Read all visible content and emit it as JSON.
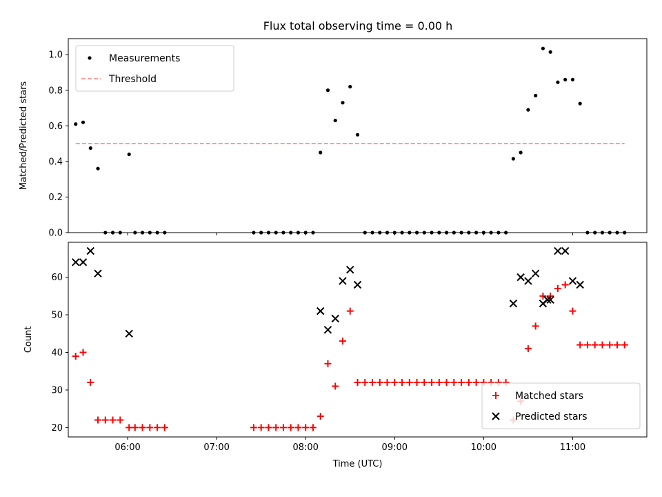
{
  "chart_data": [
    {
      "type": "scatter",
      "title": "Flux total observing time = 0.00 h",
      "xlabel": "",
      "ylabel": "Matched/Predicted stars",
      "xlim": [
        "05:20",
        "11:50"
      ],
      "ylim": [
        0,
        1.09
      ],
      "yticks": [
        0.0,
        0.2,
        0.4,
        0.6,
        0.8,
        1.0
      ],
      "ytick_labels": [
        "0.0",
        "0.2",
        "0.4",
        "0.6",
        "0.8",
        "1.0"
      ],
      "legend_position": "top-left",
      "grid": false,
      "series": [
        {
          "name": "Measurements",
          "marker": "dot",
          "color": "#000000",
          "points": [
            [
              "05:25",
              0.61
            ],
            [
              "05:30",
              0.62
            ],
            [
              "05:35",
              0.475
            ],
            [
              "05:40",
              0.36
            ],
            [
              "05:45",
              0
            ],
            [
              "05:50",
              0
            ],
            [
              "05:55",
              0
            ],
            [
              "06:01",
              0.44
            ],
            [
              "06:05",
              0
            ],
            [
              "06:10",
              0
            ],
            [
              "06:15",
              0
            ],
            [
              "06:20",
              0
            ],
            [
              "06:25",
              0
            ],
            [
              "07:25",
              0
            ],
            [
              "07:30",
              0
            ],
            [
              "07:35",
              0
            ],
            [
              "07:40",
              0
            ],
            [
              "07:45",
              0
            ],
            [
              "07:50",
              0
            ],
            [
              "07:55",
              0
            ],
            [
              "08:00",
              0
            ],
            [
              "08:05",
              0
            ],
            [
              "08:10",
              0.45
            ],
            [
              "08:15",
              0.8
            ],
            [
              "08:20",
              0.63
            ],
            [
              "08:25",
              0.73
            ],
            [
              "08:30",
              0.82
            ],
            [
              "08:35",
              0.55
            ],
            [
              "08:40",
              0
            ],
            [
              "08:45",
              0
            ],
            [
              "08:50",
              0
            ],
            [
              "08:55",
              0
            ],
            [
              "09:00",
              0
            ],
            [
              "09:05",
              0
            ],
            [
              "09:10",
              0
            ],
            [
              "09:15",
              0
            ],
            [
              "09:20",
              0
            ],
            [
              "09:25",
              0
            ],
            [
              "09:30",
              0
            ],
            [
              "09:35",
              0
            ],
            [
              "09:40",
              0
            ],
            [
              "09:45",
              0
            ],
            [
              "09:50",
              0
            ],
            [
              "09:55",
              0
            ],
            [
              "10:00",
              0
            ],
            [
              "10:05",
              0
            ],
            [
              "10:10",
              0
            ],
            [
              "10:15",
              0
            ],
            [
              "10:20",
              0.415
            ],
            [
              "10:25",
              0.45
            ],
            [
              "10:30",
              0.69
            ],
            [
              "10:35",
              0.77
            ],
            [
              "10:40",
              1.035
            ],
            [
              "10:45",
              1.015
            ],
            [
              "10:50",
              0.845
            ],
            [
              "10:55",
              0.86
            ],
            [
              "11:00",
              0.86
            ],
            [
              "11:05",
              0.725
            ],
            [
              "11:10",
              0
            ],
            [
              "11:15",
              0
            ],
            [
              "11:20",
              0
            ],
            [
              "11:25",
              0
            ],
            [
              "11:30",
              0
            ],
            [
              "11:35",
              0
            ]
          ]
        },
        {
          "name": "Threshold",
          "marker": "dashed-line",
          "color": "#ff8080",
          "points": [
            [
              "05:25",
              0.5
            ],
            [
              "11:35",
              0.5
            ]
          ]
        }
      ]
    },
    {
      "type": "scatter",
      "title": "",
      "xlabel": "Time (UTC)",
      "ylabel": "Count",
      "xlim": [
        "05:20",
        "11:50"
      ],
      "ylim": [
        17.5,
        69.3
      ],
      "xticks": [
        "06:00",
        "07:00",
        "08:00",
        "09:00",
        "10:00",
        "11:00"
      ],
      "yticks": [
        20,
        30,
        40,
        50,
        60
      ],
      "ytick_labels": [
        "20",
        "30",
        "40",
        "50",
        "60"
      ],
      "legend_position": "bottom-right",
      "grid": false,
      "series": [
        {
          "name": "Matched stars",
          "marker": "plus",
          "color": "#ff0000",
          "points": [
            [
              "05:25",
              39
            ],
            [
              "05:30",
              40
            ],
            [
              "05:35",
              32
            ],
            [
              "05:40",
              22
            ],
            [
              "05:45",
              22
            ],
            [
              "05:50",
              22
            ],
            [
              "05:55",
              22
            ],
            [
              "06:01",
              20
            ],
            [
              "06:05",
              20
            ],
            [
              "06:10",
              20
            ],
            [
              "06:15",
              20
            ],
            [
              "06:20",
              20
            ],
            [
              "06:25",
              20
            ],
            [
              "07:25",
              20
            ],
            [
              "07:30",
              20
            ],
            [
              "07:35",
              20
            ],
            [
              "07:40",
              20
            ],
            [
              "07:45",
              20
            ],
            [
              "07:50",
              20
            ],
            [
              "07:55",
              20
            ],
            [
              "08:00",
              20
            ],
            [
              "08:05",
              20
            ],
            [
              "08:10",
              23
            ],
            [
              "08:15",
              37
            ],
            [
              "08:20",
              31
            ],
            [
              "08:25",
              43
            ],
            [
              "08:30",
              51
            ],
            [
              "08:35",
              32
            ],
            [
              "08:40",
              32
            ],
            [
              "08:45",
              32
            ],
            [
              "08:50",
              32
            ],
            [
              "08:55",
              32
            ],
            [
              "09:00",
              32
            ],
            [
              "09:05",
              32
            ],
            [
              "09:10",
              32
            ],
            [
              "09:15",
              32
            ],
            [
              "09:20",
              32
            ],
            [
              "09:25",
              32
            ],
            [
              "09:30",
              32
            ],
            [
              "09:35",
              32
            ],
            [
              "09:40",
              32
            ],
            [
              "09:45",
              32
            ],
            [
              "09:50",
              32
            ],
            [
              "09:55",
              32
            ],
            [
              "10:00",
              32
            ],
            [
              "10:05",
              32
            ],
            [
              "10:10",
              32
            ],
            [
              "10:15",
              32
            ],
            [
              "10:20",
              22
            ],
            [
              "10:25",
              27
            ],
            [
              "10:30",
              41
            ],
            [
              "10:35",
              47
            ],
            [
              "10:40",
              55
            ],
            [
              "10:45",
              55
            ],
            [
              "10:50",
              57
            ],
            [
              "10:55",
              58
            ],
            [
              "11:00",
              51
            ],
            [
              "11:05",
              42
            ],
            [
              "11:10",
              42
            ],
            [
              "11:15",
              42
            ],
            [
              "11:20",
              42
            ],
            [
              "11:25",
              42
            ],
            [
              "11:30",
              42
            ],
            [
              "11:35",
              42
            ]
          ]
        },
        {
          "name": "Predicted stars",
          "marker": "x",
          "color": "#000000",
          "points": [
            [
              "05:25",
              64
            ],
            [
              "05:30",
              64
            ],
            [
              "05:35",
              67
            ],
            [
              "05:40",
              61
            ],
            [
              "06:01",
              45
            ],
            [
              "08:10",
              51
            ],
            [
              "08:15",
              46
            ],
            [
              "08:20",
              49
            ],
            [
              "08:25",
              59
            ],
            [
              "08:30",
              62
            ],
            [
              "08:35",
              58
            ],
            [
              "10:20",
              53
            ],
            [
              "10:25",
              60
            ],
            [
              "10:30",
              59
            ],
            [
              "10:35",
              61
            ],
            [
              "10:40",
              53
            ],
            [
              "10:43",
              54
            ],
            [
              "10:45",
              54
            ],
            [
              "10:50",
              67
            ],
            [
              "10:55",
              67
            ],
            [
              "11:00",
              59
            ],
            [
              "11:05",
              58
            ]
          ]
        }
      ]
    }
  ]
}
